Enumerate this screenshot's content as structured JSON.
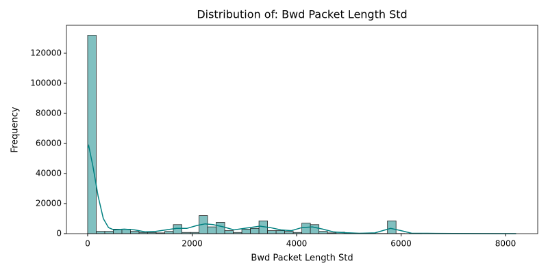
{
  "chart_data": {
    "type": "histogram",
    "title": "Distribution of: Bwd Packet Length Std",
    "x_label": "Bwd Packet Length Std",
    "y_label": "Frequency",
    "bins": [
      0,
      164,
      328,
      492,
      656,
      820,
      984,
      1148,
      1312,
      1476,
      1640,
      1804,
      1968,
      2132,
      2296,
      2460,
      2624,
      2788,
      2952,
      3116,
      3280,
      3444,
      3608,
      3772,
      3936,
      4100,
      4264,
      4428,
      4592,
      4756,
      4920,
      5084,
      5248,
      5412,
      5576,
      5740,
      5904,
      6068,
      6232,
      6396,
      6560,
      6724,
      6888,
      7052,
      7216,
      7380,
      7544,
      7708,
      7872,
      8036,
      8200
    ],
    "counts": [
      132000,
      1500,
      1500,
      3000,
      3000,
      1500,
      800,
      800,
      500,
      1500,
      6000,
      800,
      800,
      12000,
      4500,
      7500,
      2000,
      800,
      3000,
      3500,
      8500,
      2000,
      2000,
      1500,
      800,
      7000,
      6000,
      1500,
      500,
      1000,
      500,
      300,
      200,
      100,
      100,
      8500,
      100,
      50,
      50,
      0,
      0,
      0,
      0,
      0,
      0,
      0,
      0,
      0,
      0,
      50
    ],
    "color": "#80c0c0",
    "edge_color": "#222222",
    "kde": {
      "color": "#008080",
      "x": [
        0,
        20,
        100,
        200,
        300,
        400,
        500,
        700,
        900,
        1100,
        1300,
        1500,
        1700,
        1900,
        2100,
        2250,
        2400,
        2600,
        2800,
        3000,
        3300,
        3500,
        3700,
        3900,
        4100,
        4300,
        4500,
        4700,
        4900,
        5200,
        5500,
        5800,
        6000,
        6200,
        6500,
        7000,
        8200
      ],
      "values": [
        57000,
        58500,
        45000,
        25000,
        10000,
        4000,
        2500,
        3000,
        2500,
        1200,
        1500,
        2500,
        3500,
        3500,
        5500,
        6500,
        6000,
        4500,
        2500,
        3500,
        5000,
        4000,
        2500,
        2000,
        4000,
        4500,
        3000,
        1200,
        700,
        200,
        500,
        3500,
        2000,
        300,
        200,
        100,
        0
      ]
    },
    "xlim": [
      -406,
      8616
    ],
    "ylim": [
      0,
      138600
    ],
    "xticks": [
      0,
      2000,
      4000,
      6000,
      8000
    ],
    "yticks": [
      0,
      20000,
      40000,
      60000,
      80000,
      100000,
      120000
    ]
  }
}
